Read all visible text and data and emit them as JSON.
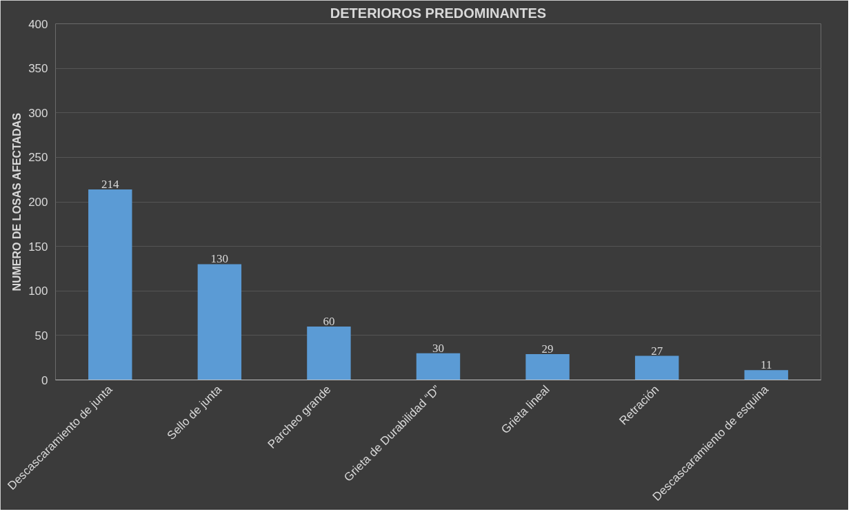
{
  "chart_data": {
    "type": "bar",
    "title": "DETERIOROS PREDOMINANTES",
    "ylabel": "NUMERO DE LOSAS AFECTADAS",
    "categories": [
      "Descascaramiento de junta",
      "Sello de junta",
      "Parcheo grande",
      "Grieta de Durabilidad “D”",
      "Grieta lineal",
      "Retración",
      "Descascaramiento de esquina"
    ],
    "values": [
      214,
      130,
      60,
      30,
      29,
      27,
      11
    ],
    "color": "#5b9bd5",
    "ylim": [
      0,
      400
    ],
    "yticks": [
      0,
      50,
      100,
      150,
      200,
      250,
      300,
      350,
      400
    ],
    "grid": "y",
    "data_labels": true
  }
}
